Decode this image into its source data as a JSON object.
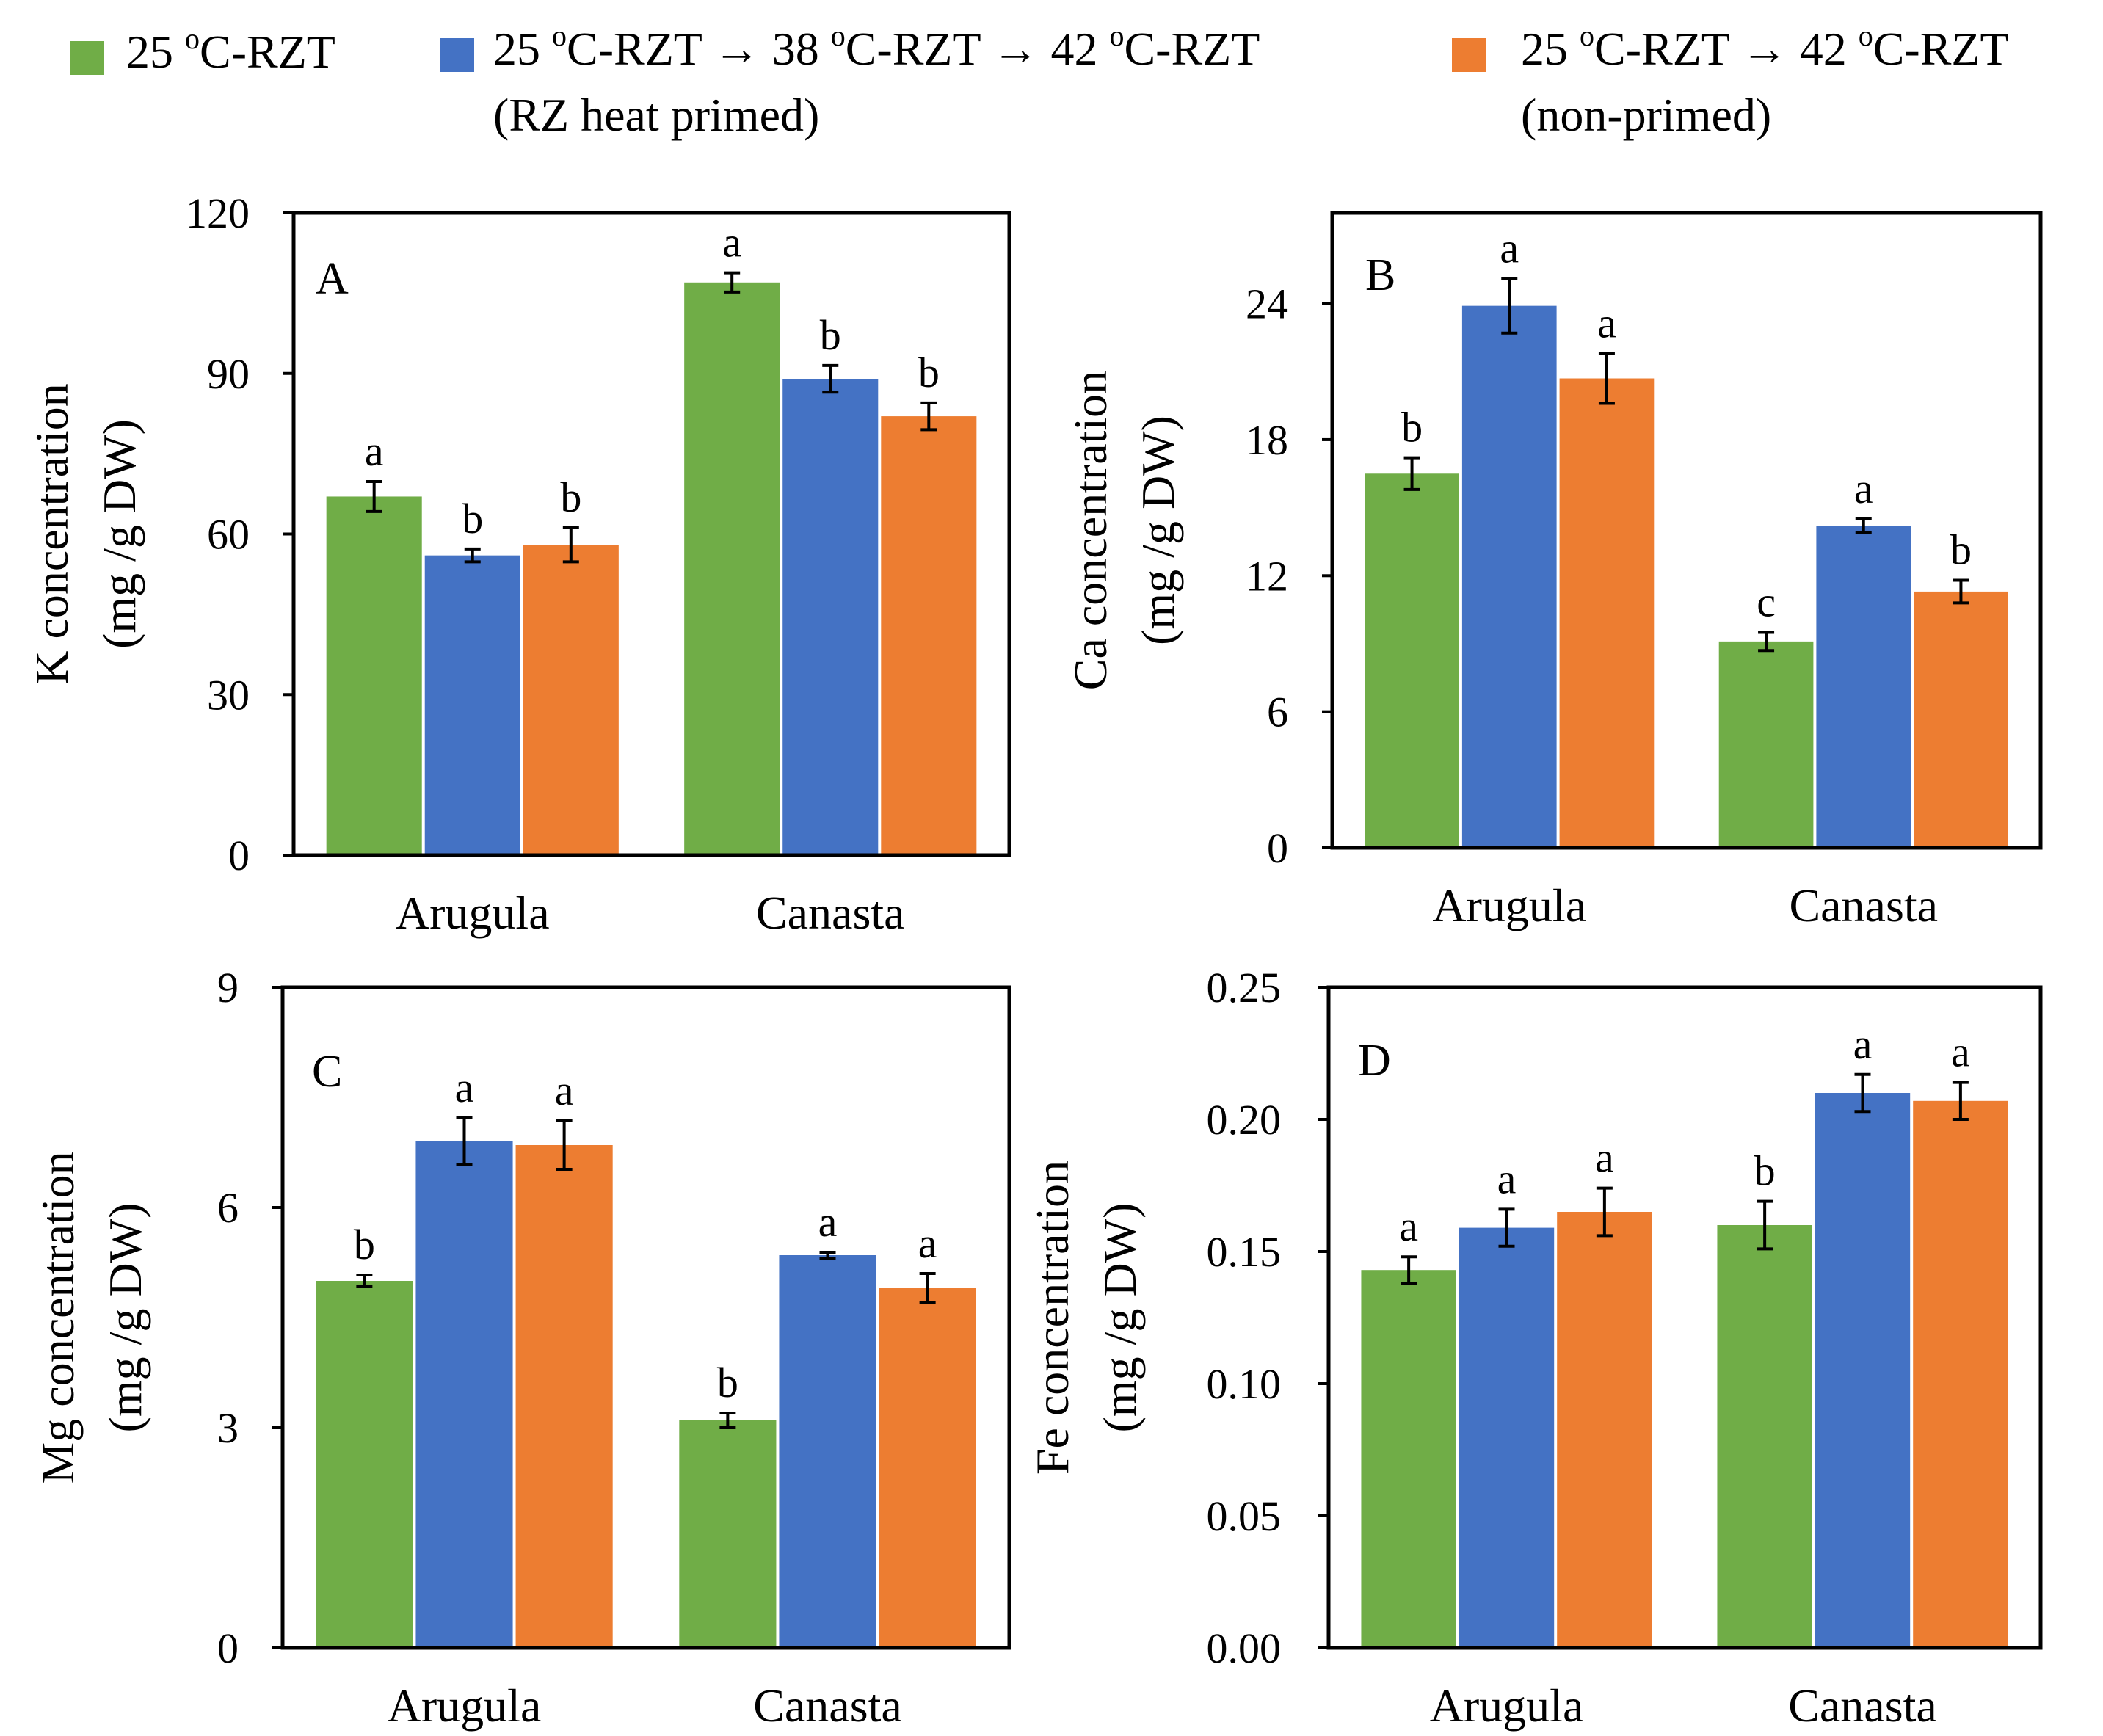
{
  "legend": [
    {
      "pre": "25 ",
      "sup": "o",
      "post": "C-RZT",
      "line2": "",
      "color": "#70AD47"
    },
    {
      "pre": "25 ",
      "sup": "o",
      "post": "C-RZT → 38 ",
      "sup2": "o",
      "post2": "C-RZT → 42 ",
      "sup3": "o",
      "post3": "C-RZT",
      "line2": "(RZ heat primed)",
      "color": "#4472C4"
    },
    {
      "pre": "25 ",
      "sup": "o",
      "post": "C-RZT → 42 ",
      "sup2": "o",
      "post2": "C-RZT",
      "line2": "(non-primed)",
      "color": "#ED7D31"
    }
  ],
  "chart_data": [
    {
      "type": "bar",
      "panel_label": "A",
      "ylabel_line1": "K concentration",
      "ylabel_line2": "(mg /g DW)",
      "categories": [
        "Arugula",
        "Canasta"
      ],
      "ylim": [
        0,
        120
      ],
      "yticks": [
        "0",
        "30",
        "60",
        "90",
        "120"
      ],
      "ytick_values": [
        0,
        30,
        60,
        90,
        120
      ],
      "series": [
        {
          "name": "25 oC-RZT",
          "color": "#70AD47",
          "values": [
            67,
            107
          ],
          "errors": [
            2.8,
            1.8
          ],
          "letters": [
            "a",
            "a"
          ]
        },
        {
          "name": "RZ heat primed",
          "color": "#4472C4",
          "values": [
            56,
            89
          ],
          "errors": [
            1.2,
            2.5
          ],
          "letters": [
            "b",
            "b"
          ]
        },
        {
          "name": "non-primed",
          "color": "#ED7D31",
          "values": [
            58,
            82
          ],
          "errors": [
            3.2,
            2.5
          ],
          "letters": [
            "b",
            "b"
          ]
        }
      ]
    },
    {
      "type": "bar",
      "panel_label": "B",
      "ylabel_line1": "Ca concentration",
      "ylabel_line2": "(mg /g DW)",
      "categories": [
        "Arugula",
        "Canasta"
      ],
      "ylim": [
        0,
        28
      ],
      "yticks": [
        "0",
        "6",
        "12",
        "18",
        "24"
      ],
      "ytick_values": [
        0,
        6,
        12,
        18,
        24
      ],
      "series": [
        {
          "name": "25 oC-RZT",
          "color": "#70AD47",
          "values": [
            16.5,
            9.1
          ],
          "errors": [
            0.7,
            0.4
          ],
          "letters": [
            "b",
            "c"
          ]
        },
        {
          "name": "RZ heat primed",
          "color": "#4472C4",
          "values": [
            23.9,
            14.2
          ],
          "errors": [
            1.2,
            0.3
          ],
          "letters": [
            "a",
            "a"
          ]
        },
        {
          "name": "non-primed",
          "color": "#ED7D31",
          "values": [
            20.7,
            11.3
          ],
          "errors": [
            1.1,
            0.5
          ],
          "letters": [
            "a",
            "b"
          ]
        }
      ]
    },
    {
      "type": "bar",
      "panel_label": "C",
      "ylabel_line1": "Mg concentration",
      "ylabel_line2": "(mg /g DW)",
      "categories": [
        "Arugula",
        "Canasta"
      ],
      "ylim": [
        0,
        9
      ],
      "yticks": [
        "0",
        "3",
        "6",
        "9"
      ],
      "ytick_values": [
        0,
        3,
        6,
        9
      ],
      "series": [
        {
          "name": "25 oC-RZT",
          "color": "#70AD47",
          "values": [
            5.0,
            3.1
          ],
          "errors": [
            0.08,
            0.1
          ],
          "letters": [
            "b",
            "b"
          ]
        },
        {
          "name": "RZ heat primed",
          "color": "#4472C4",
          "values": [
            6.9,
            5.35
          ],
          "errors": [
            0.32,
            0.04
          ],
          "letters": [
            "a",
            "a"
          ]
        },
        {
          "name": "non-primed",
          "color": "#ED7D31",
          "values": [
            6.85,
            4.9
          ],
          "errors": [
            0.33,
            0.2
          ],
          "letters": [
            "a",
            "a"
          ]
        }
      ]
    },
    {
      "type": "bar",
      "panel_label": "D",
      "ylabel_line1": "Fe  concentration",
      "ylabel_line2": "(mg /g DW)",
      "categories": [
        "Arugula",
        "Canasta"
      ],
      "ylim": [
        0,
        0.25
      ],
      "yticks": [
        "0.00",
        "0.05",
        "0.10",
        "0.15",
        "0.20",
        "0.25"
      ],
      "ytick_values": [
        0,
        0.05,
        0.1,
        0.15,
        0.2,
        0.25
      ],
      "series": [
        {
          "name": "25 oC-RZT",
          "color": "#70AD47",
          "values": [
            0.143,
            0.16
          ],
          "errors": [
            0.005,
            0.009
          ],
          "letters": [
            "a",
            "b"
          ]
        },
        {
          "name": "RZ heat primed",
          "color": "#4472C4",
          "values": [
            0.159,
            0.21
          ],
          "errors": [
            0.007,
            0.007
          ],
          "letters": [
            "a",
            "a"
          ]
        },
        {
          "name": "non-primed",
          "color": "#ED7D31",
          "values": [
            0.165,
            0.207
          ],
          "errors": [
            0.009,
            0.007
          ],
          "letters": [
            "a",
            "a"
          ]
        }
      ]
    }
  ]
}
